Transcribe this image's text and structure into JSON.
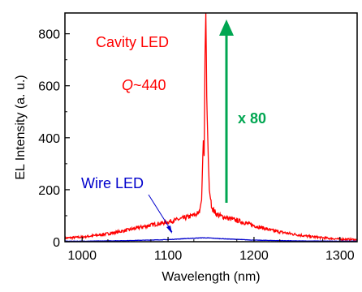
{
  "chart_data": {
    "type": "line",
    "xlabel": "Wavelength (nm)",
    "ylabel": "EL Intensity (a. u.)",
    "xlim": [
      980,
      1320
    ],
    "ylim": [
      0,
      880
    ],
    "xticks": [
      1000,
      1100,
      1200,
      1300
    ],
    "yticks": [
      0,
      200,
      400,
      600,
      800
    ],
    "grid": false,
    "colors": {
      "cavity": "#ff0000",
      "wire": "#0000cc",
      "arrow": "#00a651"
    },
    "series": [
      {
        "name": "Cavity LED",
        "x": [
          980,
          1000,
          1020,
          1040,
          1060,
          1080,
          1100,
          1110,
          1120,
          1130,
          1136,
          1139,
          1141,
          1142,
          1143,
          1144,
          1145,
          1146,
          1147,
          1148,
          1150,
          1152,
          1156,
          1160,
          1170,
          1180,
          1190,
          1200,
          1220,
          1240,
          1260,
          1280,
          1300,
          1320
        ],
        "y": [
          14,
          18,
          26,
          36,
          50,
          64,
          76,
          84,
          92,
          102,
          110,
          160,
          390,
          330,
          720,
          880,
          560,
          420,
          300,
          200,
          150,
          125,
          108,
          100,
          90,
          82,
          72,
          62,
          44,
          32,
          22,
          15,
          10,
          8
        ]
      },
      {
        "name": "Wire LED",
        "x": [
          980,
          1000,
          1050,
          1100,
          1120,
          1140,
          1150,
          1160,
          1180,
          1200,
          1250,
          1300,
          1320
        ],
        "y": [
          2,
          2,
          4,
          8,
          12,
          15,
          14,
          12,
          9,
          6,
          3,
          2,
          2
        ]
      }
    ],
    "annotations": {
      "cavity_label": "Cavity LED",
      "q_symbol": "Q",
      "q_value": "~440",
      "wire_label": "Wire LED",
      "magnification": "x 80"
    }
  }
}
